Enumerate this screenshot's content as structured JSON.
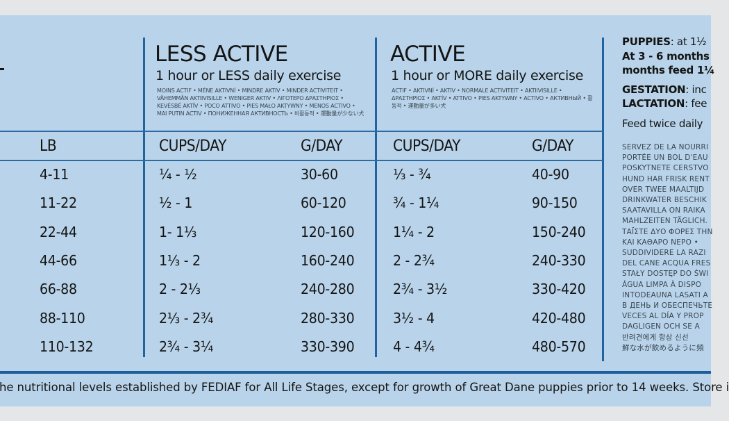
{
  "colors": {
    "panel": "#b9d4ea",
    "rule": "#1f63a0",
    "text": "#141414",
    "background": "#e4e6e8"
  },
  "weight_header": "LB",
  "less_active": {
    "title": "LESS ACTIVE",
    "subtitle": "1 hour or LESS daily exercise",
    "translations": "MOINS ACTIF • MÉNE AKTIVNÍ • MINDRE AKTIV • MINDER ACTIVITEIT • VÄHEMMÄN AKTIIVISILLE • WENIGER AKTIV • ΛΙΓΟΤΕΡΟ ΔΡΑΣΤΗΡΙΟΣ • KEVÉSBÉ AKTÍV • POCO ATTIVO • PIES MAŁO AKTYWNY • MENOS ACTIVO • MAI PUTIN ACTIV • ПОНИЖЕННАЯ АКТИВНОСТЬ • 비활동적 • 運動量が少ない犬",
    "cups_header": "CUPS/DAY",
    "grams_header": "G/DAY"
  },
  "active": {
    "title": "ACTIVE",
    "subtitle": "1 hour or MORE daily exercise",
    "translations": "ACTIF • AKTIVNÍ • AKTIV • NORMALE ACTIVITEIT • AKTIIVISILLE • ΔΡΑΣΤΗΡΙΟΣ • AKTÍV • ATTIVO • PIES AKTYWNY • ACTIVO • АКТИВНЫЙ • 활동적 • 運動量が多い犬",
    "cups_header": "CUPS/DAY",
    "grams_header": "G/DAY"
  },
  "rows": [
    {
      "lb": "4-11",
      "less_cups": "¼ - ½",
      "less_g": "30-60",
      "active_cups": "⅓ - ¾",
      "active_g": "40-90"
    },
    {
      "lb": "11-22",
      "less_cups": "½ - 1",
      "less_g": "60-120",
      "active_cups": "¾ - 1¼",
      "active_g": "90-150"
    },
    {
      "lb": "22-44",
      "less_cups": "1- 1⅓",
      "less_g": "120-160",
      "active_cups": "1¼ - 2",
      "active_g": "150-240"
    },
    {
      "lb": "44-66",
      "less_cups": "1⅓ - 2",
      "less_g": "160-240",
      "active_cups": "2 - 2¾",
      "active_g": "240-330"
    },
    {
      "lb": "66-88",
      "less_cups": "2 - 2⅓",
      "less_g": "240-280",
      "active_cups": "2¾ - 3½",
      "active_g": "330-420"
    },
    {
      "lb": "88-110",
      "less_cups": "2⅓ - 2¾",
      "less_g": "280-330",
      "active_cups": "3½ - 4",
      "active_g": "420-480"
    },
    {
      "lb": "110-132",
      "less_cups": "2¾ - 3¼",
      "less_g": "330-390",
      "active_cups": "4 - 4¾",
      "active_g": "480-570"
    }
  ],
  "side": {
    "puppies_label": "PUPPIES",
    "puppies_text": ": at 1½",
    "line2": "At  3 - 6 months",
    "line3": "months feed 1¼",
    "gestation_label": "GESTATION",
    "gestation_text": ": inc",
    "lactation_label": "LACTATION",
    "lactation_text": ": fee",
    "feed_twice": "Feed twice daily",
    "translations": [
      "SERVEZ DE LA NOURRI",
      "PORTÉE UN BOL D'EAU",
      "POSKYTNETE CERSTVO",
      "HUND HAR FRISK RENT",
      "OVER TWEE MAALTIJD",
      "DRINKWATER BESCHIK",
      "SAATAVILLA ON RAIKA",
      "MAHLZEITEN TÄGLICH.",
      "ΤΑΪΣΤΕ ΔΥΟ ΦΟΡΕΣ ΤΗΝ",
      "ΚΑΙ ΚΑΘΑΡΟ ΝΕΡΟ •",
      "SUDDIVIDERE LA RAZI",
      "DEL CANE ACQUA FRES",
      "STAŁY DOSTĘP DO ŚWI",
      "ÁGUA LIMPA À DISPO",
      "INTODEAUNA LASATI A",
      "В ДЕНЬ И ОБЕСПЕЧЬТЕ",
      "VECES AL DÍA Y PROP",
      "DAGLIGEN OCH SE A",
      "반려견에게 항상 신선",
      "鮮な水が飲めるように頻"
    ]
  },
  "footer": "he nutritional levels established by FEDIAF for All Life Stages, except for growth of Great Dane puppies prior to 14 weeks. Store i"
}
